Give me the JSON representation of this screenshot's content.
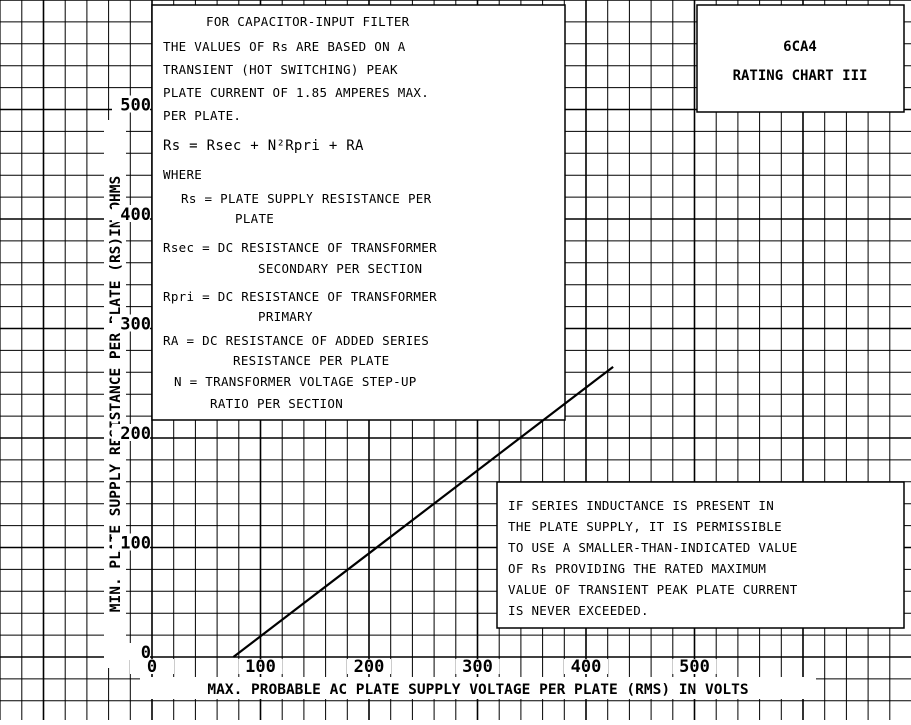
{
  "chart_data": {
    "type": "line",
    "title": "6CA4",
    "subtitle": "RATING CHART III",
    "xlabel": "MAX. PROBABLE AC PLATE SUPPLY VOLTAGE PER PLATE (RMS) IN VOLTS",
    "ylabel": "MIN. PLATE SUPPLY RESISTANCE PER PLATE (RS)IN OHMS",
    "xlim": [
      0,
      600
    ],
    "ylim": [
      0,
      500
    ],
    "x_ticks": [
      "0",
      "100",
      "200",
      "300",
      "400",
      "500"
    ],
    "y_ticks": [
      "0",
      "100",
      "200",
      "300",
      "400",
      "500"
    ],
    "grid": true,
    "series": [
      {
        "x": [
          75,
          425
        ],
        "y": [
          0,
          265
        ]
      }
    ],
    "notes": {
      "filter": {
        "heading": "FOR CAPACITOR-INPUT FILTER",
        "intro": [
          "THE VALUES OF Rs ARE BASED ON A",
          "TRANSIENT (HOT SWITCHING) PEAK",
          "PLATE CURRENT OF 1.85 AMPERES MAX.",
          "PER PLATE."
        ],
        "formula": "Rs = Rsec + N²Rpri + RA",
        "where": "WHERE",
        "definitions": [
          "Rs = PLATE SUPPLY RESISTANCE PER",
          "PLATE",
          "Rsec = DC RESISTANCE OF TRANSFORMER",
          "SECONDARY PER SECTION",
          "Rpri = DC RESISTANCE OF TRANSFORMER",
          "PRIMARY",
          "RA = DC RESISTANCE OF ADDED SERIES",
          "RESISTANCE PER PLATE",
          "N = TRANSFORMER VOLTAGE STEP-UP",
          "RATIO PER SECTION"
        ]
      },
      "inductance": [
        "IF SERIES INDUCTANCE IS PRESENT IN",
        "THE PLATE SUPPLY, IT IS PERMISSIBLE",
        "TO USE A SMALLER-THAN-INDICATED VALUE",
        "OF Rs PROVIDING THE RATED MAXIMUM",
        "VALUE OF TRANSIENT PEAK PLATE CURRENT",
        "IS NEVER EXCEEDED."
      ]
    }
  }
}
